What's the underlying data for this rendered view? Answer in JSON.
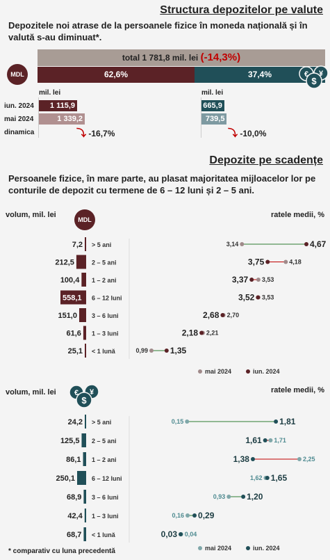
{
  "section1": {
    "title": "Structura depozitelor pe valute",
    "lead": "Depozitele noi atrase de la persoanele fizice în moneda națională și în valută s-au diminuat*.",
    "total_label": "total 1 781,8 mil. lei",
    "total_change": "(-14,3%)",
    "share_mdl": "62,6%",
    "share_fx": "37,4%",
    "mdl_badge": "MDL",
    "unit_left": "mil. lei",
    "unit_right": "mil. lei",
    "rows": [
      {
        "label": "iun. 2024",
        "mdl": "1 115,9",
        "fx": "665,9"
      },
      {
        "label": "mai 2024",
        "mdl": "1 339,2",
        "fx": "739,5"
      }
    ],
    "dynamics_label": "dinamica",
    "mdl_dynamics": "-16,7%",
    "fx_dynamics": "-10,0%",
    "mdl_values_num": [
      1115.9,
      1339.2
    ],
    "fx_values_num": [
      665.9,
      739.5
    ],
    "colors": {
      "mdl_dark": "#5b2226",
      "mdl_light": "#b09090",
      "fx_dark": "#204f58",
      "fx_light": "#7e9aa1",
      "total_bar": "#a89c95",
      "red": "#c00000"
    }
  },
  "section2": {
    "title": "Depozite pe scadențe",
    "lead": "Persoanele fizice, în mare parte, au plasat majoritatea mijloacelor lor pe conturile de depozit cu termene de 6 – 12 luni și 2 – 5 ani."
  },
  "chart_data": [
    {
      "type": "bar",
      "currency": "MDL",
      "left_label": "volum, mil. lei",
      "right_label": "ratele medii, %",
      "categories": [
        "> 5 ani",
        "2 – 5 ani",
        "1 – 2 ani",
        "6 – 12 luni",
        "3 – 6 luni",
        "1 – 3 luni",
        "< 1 lună"
      ],
      "volume": [
        7.2,
        212.5,
        100.4,
        558.1,
        151.0,
        61.6,
        25.1
      ],
      "volume_labels": [
        "7,2",
        "212,5",
        "100,4",
        "558,1",
        "151,0",
        "61,6",
        "25,1"
      ],
      "rate_may": [
        3.14,
        4.18,
        3.53,
        3.53,
        2.7,
        2.21,
        0.99
      ],
      "rate_jun": [
        4.67,
        3.75,
        3.37,
        3.52,
        2.68,
        2.18,
        1.35
      ],
      "rate_may_labels": [
        "3,14",
        "4,18",
        "3,53",
        "3,53",
        "2,70",
        "2,21",
        "0,99"
      ],
      "rate_jun_labels": [
        "4,67",
        "3,75",
        "3,37",
        "3,52",
        "2,68",
        "2,18",
        "1,35"
      ],
      "legend": [
        "mai 2024",
        "iun. 2024"
      ],
      "highlight_index": 3
    },
    {
      "type": "bar",
      "currency": "FX",
      "left_label": "volum, mil. lei",
      "right_label": "ratele medii, %",
      "categories": [
        "> 5 ani",
        "2 – 5 ani",
        "1 – 2 ani",
        "6 – 12 luni",
        "3 – 6 luni",
        "1 – 3 luni",
        "< 1 lună"
      ],
      "volume": [
        24.2,
        125.5,
        86.1,
        250.1,
        68.9,
        42.4,
        68.7
      ],
      "volume_labels": [
        "24,2",
        "125,5",
        "86,1",
        "250,1",
        "68,9",
        "42,4",
        "68,7"
      ],
      "rate_may": [
        0.15,
        1.71,
        2.25,
        1.62,
        0.93,
        0.16,
        0.04
      ],
      "rate_jun": [
        1.81,
        1.61,
        1.38,
        1.65,
        1.2,
        0.29,
        0.03
      ],
      "rate_may_labels": [
        "0,15",
        "1,71",
        "2,25",
        "1,62",
        "0,93",
        "0,16",
        "0,04"
      ],
      "rate_jun_labels": [
        "1,81",
        "1,61",
        "1,38",
        "1,65",
        "1,20",
        "0,29",
        "0,03"
      ],
      "legend": [
        "mai 2024",
        "iun. 2024"
      ]
    }
  ],
  "footnote": "* comparativ cu luna precedentă"
}
